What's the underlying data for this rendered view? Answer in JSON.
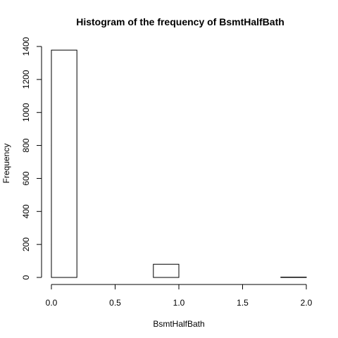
{
  "chart_data": {
    "type": "bar",
    "title": "Histogram of the frequency of BsmtHalfBath",
    "xlabel": "BsmtHalfBath",
    "ylabel": "Frequency",
    "bin_width": 0.2,
    "bins": [
      {
        "start": 0.0,
        "end": 0.2,
        "value": 1378
      },
      {
        "start": 0.2,
        "end": 0.4,
        "value": 0
      },
      {
        "start": 0.4,
        "end": 0.6,
        "value": 0
      },
      {
        "start": 0.6,
        "end": 0.8,
        "value": 0
      },
      {
        "start": 0.8,
        "end": 1.0,
        "value": 80
      },
      {
        "start": 1.0,
        "end": 1.2,
        "value": 0
      },
      {
        "start": 1.2,
        "end": 1.4,
        "value": 0
      },
      {
        "start": 1.4,
        "end": 1.6,
        "value": 0
      },
      {
        "start": 1.6,
        "end": 1.8,
        "value": 0
      },
      {
        "start": 1.8,
        "end": 2.0,
        "value": 2
      }
    ],
    "xlim": [
      0,
      2
    ],
    "ylim": [
      0,
      1400
    ],
    "x_ticks": [
      {
        "value": 0.0,
        "label": "0.0"
      },
      {
        "value": 0.5,
        "label": "0.5"
      },
      {
        "value": 1.0,
        "label": "1.0"
      },
      {
        "value": 1.5,
        "label": "1.5"
      },
      {
        "value": 2.0,
        "label": "2.0"
      }
    ],
    "y_ticks": [
      {
        "value": 0,
        "label": "0"
      },
      {
        "value": 200,
        "label": "200"
      },
      {
        "value": 400,
        "label": "400"
      },
      {
        "value": 600,
        "label": "600"
      },
      {
        "value": 800,
        "label": "800"
      },
      {
        "value": 1000,
        "label": "1000"
      },
      {
        "value": 1200,
        "label": "1200"
      },
      {
        "value": 1400,
        "label": "1400"
      }
    ],
    "bar_fill": "#ffffff",
    "bar_stroke": "#000000",
    "grid": false
  }
}
